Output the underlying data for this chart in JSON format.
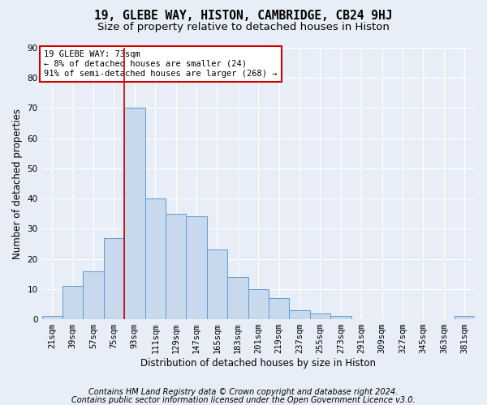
{
  "title": "19, GLEBE WAY, HISTON, CAMBRIDGE, CB24 9HJ",
  "subtitle": "Size of property relative to detached houses in Histon",
  "xlabel": "Distribution of detached houses by size in Histon",
  "ylabel": "Number of detached properties",
  "categories": [
    "21sqm",
    "39sqm",
    "57sqm",
    "75sqm",
    "93sqm",
    "111sqm",
    "129sqm",
    "147sqm",
    "165sqm",
    "183sqm",
    "201sqm",
    "219sqm",
    "237sqm",
    "255sqm",
    "273sqm",
    "291sqm",
    "309sqm",
    "327sqm",
    "345sqm",
    "363sqm",
    "381sqm"
  ],
  "values": [
    1,
    11,
    16,
    27,
    70,
    40,
    35,
    34,
    23,
    14,
    10,
    7,
    3,
    2,
    1,
    0,
    0,
    0,
    0,
    0,
    1
  ],
  "bar_color": "#c8d9ee",
  "bar_edge_color": "#5b9bd5",
  "annotation_text": "19 GLEBE WAY: 73sqm\n← 8% of detached houses are smaller (24)\n91% of semi-detached houses are larger (268) →",
  "annotation_box_color": "#ffffff",
  "annotation_box_edge": "#cc0000",
  "red_line_color": "#cc0000",
  "footer1": "Contains HM Land Registry data © Crown copyright and database right 2024.",
  "footer2": "Contains public sector information licensed under the Open Government Licence v3.0.",
  "ylim": [
    0,
    90
  ],
  "yticks": [
    0,
    10,
    20,
    30,
    40,
    50,
    60,
    70,
    80,
    90
  ],
  "background_color": "#e8eef7",
  "grid_color": "#ffffff",
  "title_fontsize": 10.5,
  "subtitle_fontsize": 9.5,
  "axis_label_fontsize": 8.5,
  "tick_fontsize": 7.5,
  "footer_fontsize": 7,
  "annot_fontsize": 7.5
}
